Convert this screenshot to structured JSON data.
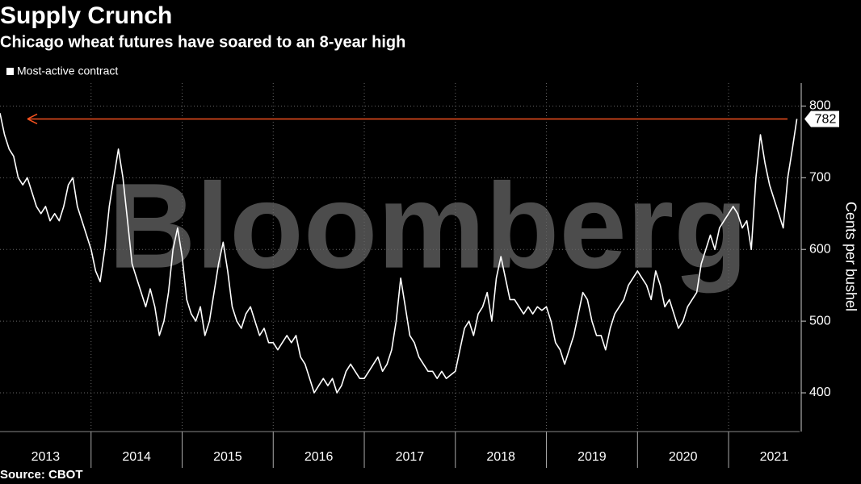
{
  "chart_data": {
    "type": "line",
    "title": "Supply Crunch",
    "subtitle": "Chicago wheat futures have soared to an 8-year high",
    "y_label": "Cents per bushel",
    "source": "Source: CBOT",
    "watermark": "Bloomberg",
    "legend_position": "top-left",
    "grid": true,
    "xlim": [
      2013,
      2021.78
    ],
    "xticks": [
      2013,
      2014,
      2015,
      2016,
      2017,
      2018,
      2019,
      2020,
      2021
    ],
    "ylim": [
      346,
      832
    ],
    "yticks": [
      400,
      500,
      600,
      700,
      800
    ],
    "reference": {
      "value": 782,
      "color": "#f4511e"
    },
    "x": [
      2013.0,
      2013.05,
      2013.1,
      2013.15,
      2013.2,
      2013.25,
      2013.3,
      2013.35,
      2013.4,
      2013.45,
      2013.5,
      2013.55,
      2013.6,
      2013.65,
      2013.7,
      2013.75,
      2013.8,
      2013.85,
      2013.9,
      2013.95,
      2014.0,
      2014.05,
      2014.1,
      2014.15,
      2014.2,
      2014.25,
      2014.3,
      2014.35,
      2014.4,
      2014.45,
      2014.5,
      2014.55,
      2014.6,
      2014.65,
      2014.7,
      2014.75,
      2014.8,
      2014.85,
      2014.9,
      2014.95,
      2015.0,
      2015.05,
      2015.1,
      2015.15,
      2015.2,
      2015.25,
      2015.3,
      2015.35,
      2015.4,
      2015.45,
      2015.5,
      2015.55,
      2015.6,
      2015.65,
      2015.7,
      2015.75,
      2015.8,
      2015.85,
      2015.9,
      2015.95,
      2016.0,
      2016.05,
      2016.1,
      2016.15,
      2016.2,
      2016.25,
      2016.3,
      2016.35,
      2016.4,
      2016.45,
      2016.5,
      2016.55,
      2016.6,
      2016.65,
      2016.7,
      2016.75,
      2016.8,
      2016.85,
      2016.9,
      2016.95,
      2017.0,
      2017.05,
      2017.1,
      2017.15,
      2017.2,
      2017.25,
      2017.3,
      2017.35,
      2017.4,
      2017.45,
      2017.5,
      2017.55,
      2017.6,
      2017.65,
      2017.7,
      2017.75,
      2017.8,
      2017.85,
      2017.9,
      2017.95,
      2018.0,
      2018.05,
      2018.1,
      2018.15,
      2018.2,
      2018.25,
      2018.3,
      2018.35,
      2018.4,
      2018.45,
      2018.5,
      2018.55,
      2018.6,
      2018.65,
      2018.7,
      2018.75,
      2018.8,
      2018.85,
      2018.9,
      2018.95,
      2019.0,
      2019.05,
      2019.1,
      2019.15,
      2019.2,
      2019.25,
      2019.3,
      2019.35,
      2019.4,
      2019.45,
      2019.5,
      2019.55,
      2019.6,
      2019.65,
      2019.7,
      2019.75,
      2019.8,
      2019.85,
      2019.9,
      2019.95,
      2020.0,
      2020.05,
      2020.1,
      2020.15,
      2020.2,
      2020.25,
      2020.3,
      2020.35,
      2020.4,
      2020.45,
      2020.5,
      2020.55,
      2020.6,
      2020.65,
      2020.7,
      2020.75,
      2020.8,
      2020.85,
      2020.9,
      2020.95,
      2021.0,
      2021.05,
      2021.1,
      2021.15,
      2021.2,
      2021.25,
      2021.3,
      2021.35,
      2021.4,
      2021.45,
      2021.5,
      2021.55,
      2021.6,
      2021.65,
      2021.7,
      2021.75
    ],
    "series": [
      {
        "name": "Most-active contract",
        "color": "#ffffff",
        "values": [
          790,
          760,
          740,
          730,
          700,
          690,
          700,
          680,
          660,
          650,
          660,
          640,
          650,
          640,
          660,
          690,
          700,
          660,
          640,
          620,
          600,
          570,
          555,
          600,
          660,
          700,
          740,
          700,
          640,
          580,
          560,
          540,
          520,
          545,
          520,
          480,
          500,
          540,
          600,
          630,
          590,
          530,
          510,
          500,
          520,
          480,
          500,
          540,
          580,
          610,
          570,
          520,
          500,
          490,
          510,
          520,
          500,
          480,
          490,
          470,
          470,
          460,
          470,
          480,
          470,
          480,
          450,
          440,
          420,
          400,
          410,
          420,
          410,
          420,
          400,
          410,
          430,
          440,
          430,
          420,
          420,
          430,
          440,
          450,
          430,
          440,
          460,
          500,
          560,
          520,
          480,
          470,
          450,
          440,
          430,
          430,
          420,
          430,
          420,
          425,
          430,
          460,
          490,
          500,
          480,
          510,
          520,
          540,
          500,
          560,
          590,
          560,
          530,
          530,
          520,
          510,
          520,
          510,
          520,
          515,
          520,
          500,
          470,
          460,
          440,
          460,
          480,
          510,
          540,
          530,
          500,
          480,
          480,
          460,
          490,
          510,
          520,
          530,
          550,
          560,
          570,
          560,
          550,
          530,
          570,
          550,
          520,
          530,
          510,
          490,
          500,
          520,
          530,
          540,
          580,
          600,
          620,
          600,
          630,
          640,
          650,
          660,
          650,
          630,
          640,
          600,
          700,
          760,
          720,
          690,
          670,
          650,
          630,
          700,
          740,
          782
        ]
      }
    ]
  }
}
